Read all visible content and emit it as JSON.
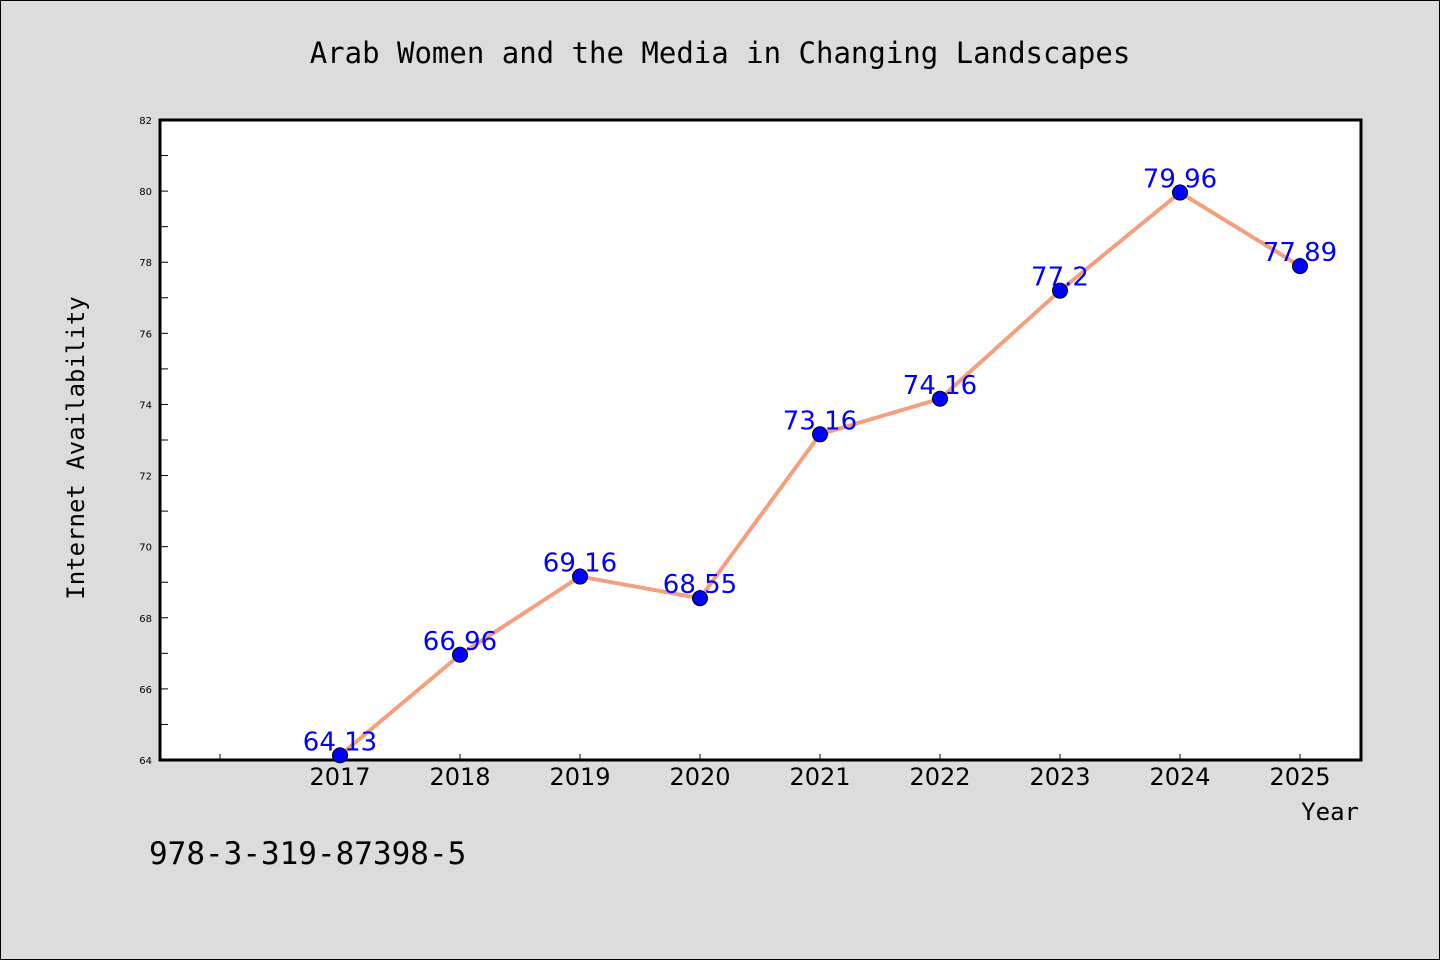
{
  "chart_data": {
    "type": "line",
    "title": "Arab Women and the Media in Changing Landscapes",
    "xlabel": "Year",
    "ylabel": "Internet Availability",
    "categories": [
      "2017",
      "2018",
      "2019",
      "2020",
      "2021",
      "2022",
      "2023",
      "2024",
      "2025"
    ],
    "series": [
      {
        "values": [
          64.13,
          66.96,
          69.16,
          68.55,
          73.16,
          74.16,
          77.2,
          79.96,
          77.89
        ],
        "labels": [
          "64.13",
          "66.96",
          "69.16",
          "68.55",
          "73.16",
          "74.16",
          "77.2",
          "79.96",
          "77.89"
        ]
      }
    ],
    "ylim": [
      64,
      82
    ],
    "yticks": [
      "64",
      "66",
      "68",
      "70",
      "72",
      "74",
      "76",
      "78",
      "80",
      "82"
    ],
    "grid": false,
    "legend": "none",
    "colors": {
      "line": "#f4a07f",
      "marker": "#0000ff",
      "label": "#0000ff",
      "background": "#dcdcdc",
      "plot_background": "#ffffff"
    }
  },
  "footer": {
    "isbn": "978-3-319-87398-5"
  }
}
